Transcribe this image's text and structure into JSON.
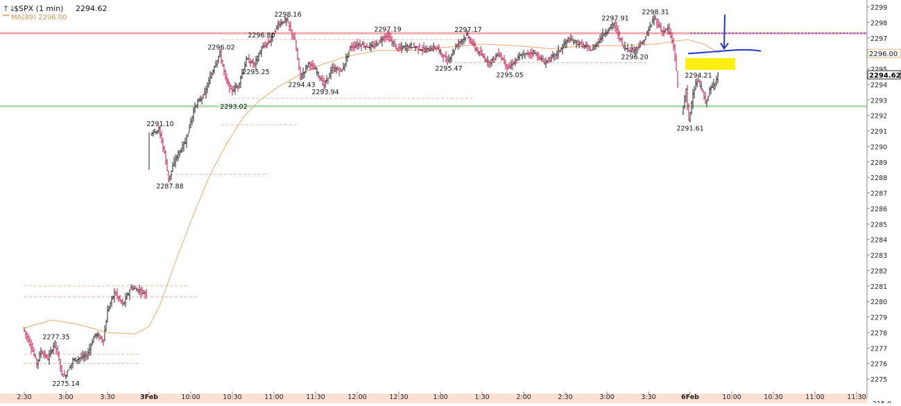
{
  "header": {
    "symbol_line": "$SPX (1 min)",
    "last_price": "2294.62",
    "ma_label": "MA(89) 2296.00"
  },
  "colors": {
    "ma_line": "#e8b27a",
    "resistance": "#f0a0a8",
    "support": "#a8d8a8",
    "annotation_blue": "#2233cc",
    "highlight": "#ffee00",
    "bar": "#222222",
    "bar_accent": "#c0104a",
    "level_dash": "#f2b8a8",
    "axis": "#888888",
    "bottom_strip": "#fbe0d4"
  },
  "chart_data": {
    "type": "ohlc",
    "title": "$SPX (1 min)",
    "ylim": [
      2274.5,
      2299.2
    ],
    "y_ticks": [
      2275,
      2276,
      2277,
      2278,
      2279,
      2280,
      2281,
      2282,
      2283,
      2284,
      2285,
      2286,
      2287,
      2288,
      2289,
      2290,
      2291,
      2292,
      2293,
      2294,
      2295,
      2296,
      2297,
      2298,
      2299
    ],
    "x_ticks": [
      "2:30",
      "3:00",
      "3:30",
      "3Feb",
      "10:00",
      "10:30",
      "11:00",
      "11:30",
      "12:00",
      "12:30",
      "1:00",
      "1:30",
      "2:00",
      "2:30",
      "3:00",
      "3:30",
      "6Feb",
      "10:00",
      "10:30",
      "11:00",
      "11:30"
    ],
    "x_tick_slots": [
      0,
      30,
      60,
      90,
      120,
      150,
      180,
      210,
      240,
      270,
      300,
      330,
      360,
      390,
      420,
      450,
      480,
      510,
      540,
      570,
      600
    ],
    "bottom_axis_cut_label": "215.0",
    "price_path": [
      {
        "slot": 0,
        "price": 2278.3
      },
      {
        "slot": 6,
        "price": 2277.1
      },
      {
        "slot": 10,
        "price": 2276.0
      },
      {
        "slot": 13,
        "price": 2276.8
      },
      {
        "slot": 18,
        "price": 2276.3
      },
      {
        "slot": 23,
        "price": 2277.35
      },
      {
        "slot": 28,
        "price": 2275.4
      },
      {
        "slot": 30,
        "price": 2275.14
      },
      {
        "slot": 36,
        "price": 2276.2
      },
      {
        "slot": 46,
        "price": 2276.5
      },
      {
        "slot": 52,
        "price": 2277.9
      },
      {
        "slot": 58,
        "price": 2277.5
      },
      {
        "slot": 61,
        "price": 2279.4
      },
      {
        "slot": 66,
        "price": 2280.6
      },
      {
        "slot": 72,
        "price": 2279.8
      },
      {
        "slot": 78,
        "price": 2280.9
      },
      {
        "slot": 84,
        "price": 2280.7
      },
      {
        "slot": 89,
        "price": 2280.5
      },
      {
        "slot": 92,
        "price": 2290.9
      },
      {
        "slot": 98,
        "price": 2291.1
      },
      {
        "slot": 102,
        "price": 2289.6
      },
      {
        "slot": 105,
        "price": 2287.88
      },
      {
        "slot": 110,
        "price": 2289.2
      },
      {
        "slot": 117,
        "price": 2290.3
      },
      {
        "slot": 124,
        "price": 2292.6
      },
      {
        "slot": 131,
        "price": 2293.4
      },
      {
        "slot": 138,
        "price": 2295.2
      },
      {
        "slot": 142,
        "price": 2296.02
      },
      {
        "slot": 146,
        "price": 2294.4
      },
      {
        "slot": 150,
        "price": 2293.6
      },
      {
        "slot": 155,
        "price": 2293.9
      },
      {
        "slot": 161,
        "price": 2295.6
      },
      {
        "slot": 167,
        "price": 2295.3
      },
      {
        "slot": 172,
        "price": 2296.3
      },
      {
        "slot": 178,
        "price": 2296.8
      },
      {
        "slot": 184,
        "price": 2297.9
      },
      {
        "slot": 190,
        "price": 2298.16
      },
      {
        "slot": 196,
        "price": 2296.8
      },
      {
        "slot": 200,
        "price": 2294.43
      },
      {
        "slot": 206,
        "price": 2295.4
      },
      {
        "slot": 212,
        "price": 2294.8
      },
      {
        "slot": 217,
        "price": 2293.94
      },
      {
        "slot": 223,
        "price": 2295.0
      },
      {
        "slot": 230,
        "price": 2294.9
      },
      {
        "slot": 236,
        "price": 2296.4
      },
      {
        "slot": 242,
        "price": 2296.6
      },
      {
        "slot": 252,
        "price": 2296.4
      },
      {
        "slot": 262,
        "price": 2297.19
      },
      {
        "slot": 270,
        "price": 2296.3
      },
      {
        "slot": 280,
        "price": 2296.5
      },
      {
        "slot": 290,
        "price": 2296.2
      },
      {
        "slot": 298,
        "price": 2296.4
      },
      {
        "slot": 306,
        "price": 2295.47
      },
      {
        "slot": 313,
        "price": 2296.6
      },
      {
        "slot": 320,
        "price": 2297.17
      },
      {
        "slot": 328,
        "price": 2296.1
      },
      {
        "slot": 336,
        "price": 2295.4
      },
      {
        "slot": 343,
        "price": 2296.0
      },
      {
        "slot": 350,
        "price": 2295.05
      },
      {
        "slot": 358,
        "price": 2295.8
      },
      {
        "slot": 368,
        "price": 2296.1
      },
      {
        "slot": 376,
        "price": 2295.4
      },
      {
        "slot": 385,
        "price": 2296.0
      },
      {
        "slot": 393,
        "price": 2296.9
      },
      {
        "slot": 402,
        "price": 2296.6
      },
      {
        "slot": 410,
        "price": 2296.2
      },
      {
        "slot": 418,
        "price": 2297.2
      },
      {
        "slot": 426,
        "price": 2297.91
      },
      {
        "slot": 433,
        "price": 2296.4
      },
      {
        "slot": 440,
        "price": 2296.2
      },
      {
        "slot": 447,
        "price": 2296.7
      },
      {
        "slot": 455,
        "price": 2298.31
      },
      {
        "slot": 461,
        "price": 2297.4
      },
      {
        "slot": 465,
        "price": 2297.6
      },
      {
        "slot": 469,
        "price": 2296.5
      },
      {
        "slot": 472,
        "price": 2294.0
      },
      {
        "slot": 475,
        "price": 2292.1
      },
      {
        "slot": 478,
        "price": 2293.6
      },
      {
        "slot": 480,
        "price": 2291.61
      },
      {
        "slot": 483,
        "price": 2293.5
      },
      {
        "slot": 486,
        "price": 2294.21
      },
      {
        "slot": 489,
        "price": 2293.8
      },
      {
        "slot": 492,
        "price": 2292.8
      },
      {
        "slot": 495,
        "price": 2293.6
      },
      {
        "slot": 498,
        "price": 2294.0
      },
      {
        "slot": 501,
        "price": 2294.62
      }
    ],
    "ma_path": [
      {
        "slot": 0,
        "price": 2278.3
      },
      {
        "slot": 20,
        "price": 2278.8
      },
      {
        "slot": 40,
        "price": 2278.5
      },
      {
        "slot": 60,
        "price": 2278.0
      },
      {
        "slot": 80,
        "price": 2277.9
      },
      {
        "slot": 90,
        "price": 2278.4
      },
      {
        "slot": 98,
        "price": 2279.8
      },
      {
        "slot": 110,
        "price": 2282.8
      },
      {
        "slot": 122,
        "price": 2285.6
      },
      {
        "slot": 134,
        "price": 2288.2
      },
      {
        "slot": 146,
        "price": 2290.2
      },
      {
        "slot": 158,
        "price": 2291.9
      },
      {
        "slot": 170,
        "price": 2293.0
      },
      {
        "slot": 184,
        "price": 2293.9
      },
      {
        "slot": 198,
        "price": 2294.6
      },
      {
        "slot": 215,
        "price": 2295.3
      },
      {
        "slot": 232,
        "price": 2295.8
      },
      {
        "slot": 255,
        "price": 2296.2
      },
      {
        "slot": 280,
        "price": 2296.2
      },
      {
        "slot": 305,
        "price": 2296.4
      },
      {
        "slot": 330,
        "price": 2296.6
      },
      {
        "slot": 355,
        "price": 2296.5
      },
      {
        "slot": 380,
        "price": 2296.3
      },
      {
        "slot": 405,
        "price": 2296.5
      },
      {
        "slot": 430,
        "price": 2296.5
      },
      {
        "slot": 455,
        "price": 2296.6
      },
      {
        "slot": 470,
        "price": 2296.8
      },
      {
        "slot": 478,
        "price": 2296.9
      },
      {
        "slot": 490,
        "price": 2296.6
      },
      {
        "slot": 501,
        "price": 2296.0
      }
    ],
    "horizontal_levels": [
      {
        "name": "resistance",
        "price": 2297.3,
        "style": "solid"
      },
      {
        "name": "support",
        "price": 2292.6,
        "style": "solid"
      }
    ],
    "dashed_levels": [
      {
        "price": 2281.0,
        "from_slot": 0,
        "to_slot": 118
      },
      {
        "price": 2280.3,
        "from_slot": 0,
        "to_slot": 125
      },
      {
        "price": 2276.6,
        "from_slot": 0,
        "to_slot": 84
      },
      {
        "price": 2276.0,
        "from_slot": 0,
        "to_slot": 84
      },
      {
        "price": 2288.2,
        "from_slot": 102,
        "to_slot": 176
      },
      {
        "price": 2291.4,
        "from_slot": 142,
        "to_slot": 198
      },
      {
        "price": 2293.1,
        "from_slot": 150,
        "to_slot": 325
      },
      {
        "price": 2295.4,
        "from_slot": 310,
        "to_slot": 450
      },
      {
        "price": 2296.9,
        "from_slot": 142,
        "to_slot": 325
      }
    ],
    "labels": [
      {
        "slot": 23,
        "price": 2277.35,
        "text": "2277.35",
        "pos": "above"
      },
      {
        "slot": 30,
        "price": 2275.14,
        "text": "2275.14",
        "pos": "below"
      },
      {
        "slot": 98,
        "price": 2291.1,
        "text": "2291.10",
        "pos": "above"
      },
      {
        "slot": 105,
        "price": 2287.88,
        "text": "2287.88",
        "pos": "below"
      },
      {
        "slot": 142,
        "price": 2296.02,
        "text": "2296.02",
        "pos": "above"
      },
      {
        "slot": 151,
        "price": 2293.02,
        "text": "2293.02",
        "pos": "below"
      },
      {
        "slot": 167,
        "price": 2295.25,
        "text": "2295.25",
        "pos": "below"
      },
      {
        "slot": 171,
        "price": 2296.8,
        "text": "2296.80",
        "pos": "above"
      },
      {
        "slot": 190,
        "price": 2298.16,
        "text": "2298.16",
        "pos": "above"
      },
      {
        "slot": 200,
        "price": 2294.43,
        "text": "2294.43",
        "pos": "below"
      },
      {
        "slot": 217,
        "price": 2293.94,
        "text": "2293.94",
        "pos": "below"
      },
      {
        "slot": 262,
        "price": 2297.19,
        "text": "2297.19",
        "pos": "above"
      },
      {
        "slot": 306,
        "price": 2295.47,
        "text": "2295.47",
        "pos": "below"
      },
      {
        "slot": 320,
        "price": 2297.17,
        "text": "2297.17",
        "pos": "above"
      },
      {
        "slot": 350,
        "price": 2295.05,
        "text": "2295.05",
        "pos": "below"
      },
      {
        "slot": 426,
        "price": 2297.91,
        "text": "2297.91",
        "pos": "above"
      },
      {
        "slot": 440,
        "price": 2296.2,
        "text": "2296.20",
        "pos": "below"
      },
      {
        "slot": 455,
        "price": 2298.31,
        "text": "2298.31",
        "pos": "above"
      },
      {
        "slot": 486,
        "price": 2294.21,
        "text": "2294.21",
        "pos": "above"
      },
      {
        "slot": 480,
        "price": 2291.61,
        "text": "2291.61",
        "pos": "below"
      }
    ],
    "price_flags": [
      {
        "price": 2296.0,
        "text": "2296.00",
        "style": "ma"
      },
      {
        "price": 2294.62,
        "text": "2294.62",
        "style": "last"
      }
    ]
  }
}
